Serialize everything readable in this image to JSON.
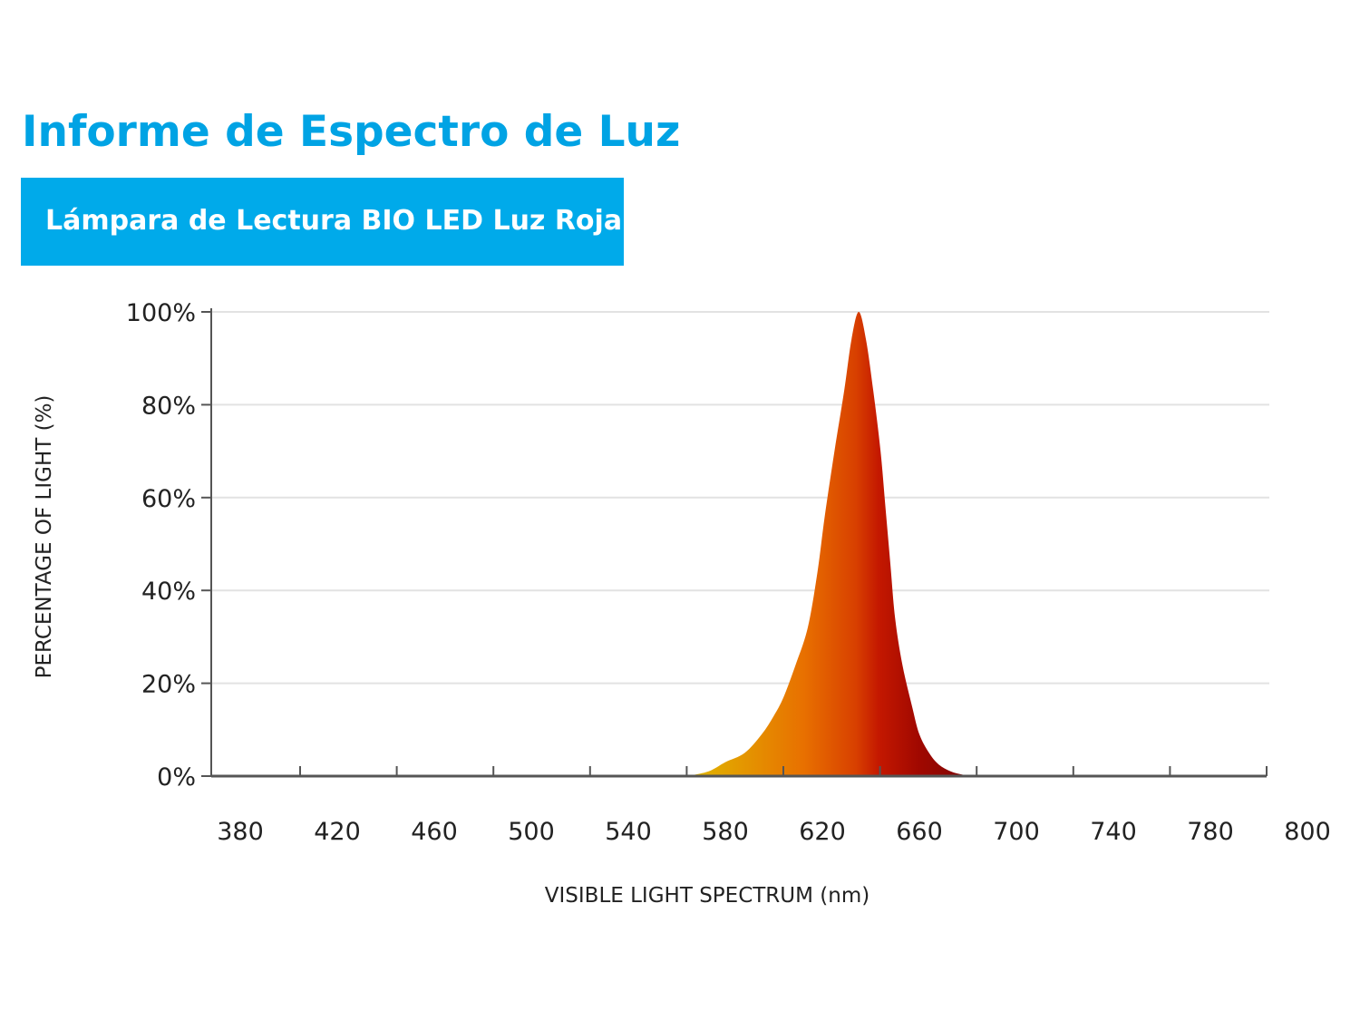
{
  "header": {
    "title": "Informe de Espectro de Luz",
    "subtitle": "Lámpara de Lectura BIO LED Luz Roja"
  },
  "colors": {
    "title": "#00a3e4",
    "subtitle_bg": "#00aaea",
    "gradient": [
      "#e0b800",
      "#e87000",
      "#d84000",
      "#c41800",
      "#a00800",
      "#7a0505"
    ]
  },
  "chart_data": {
    "type": "area",
    "title": "",
    "xlabel": "VISIBLE LIGHT SPECTRUM (nm)",
    "ylabel": "PERCENTAGE OF LIGHT (%)",
    "xlim": [
      380,
      800
    ],
    "ylim": [
      0,
      100
    ],
    "grid": true,
    "x_ticks": [
      "380",
      "420",
      "460",
      "500",
      "540",
      "580",
      "620",
      "660",
      "700",
      "740",
      "780",
      "800"
    ],
    "y_ticks": [
      "0%",
      "20%",
      "40%",
      "60%",
      "80%",
      "100%"
    ],
    "series": [
      {
        "x": [
          564,
          573,
          580,
          588,
          595,
          600,
          604,
          609,
          614,
          618,
          621,
          625,
          629,
          632,
          635,
          638,
          641,
          644,
          646,
          648,
          650,
          653,
          657,
          660,
          664,
          668,
          673,
          678,
          684
        ],
        "y": [
          0,
          1,
          3,
          5,
          9,
          13,
          17,
          24,
          32,
          44,
          56,
          70,
          83,
          94,
          100,
          94,
          83,
          70,
          58,
          46,
          34,
          24,
          15,
          9,
          5,
          2.5,
          1,
          0.3,
          0
        ]
      }
    ]
  }
}
